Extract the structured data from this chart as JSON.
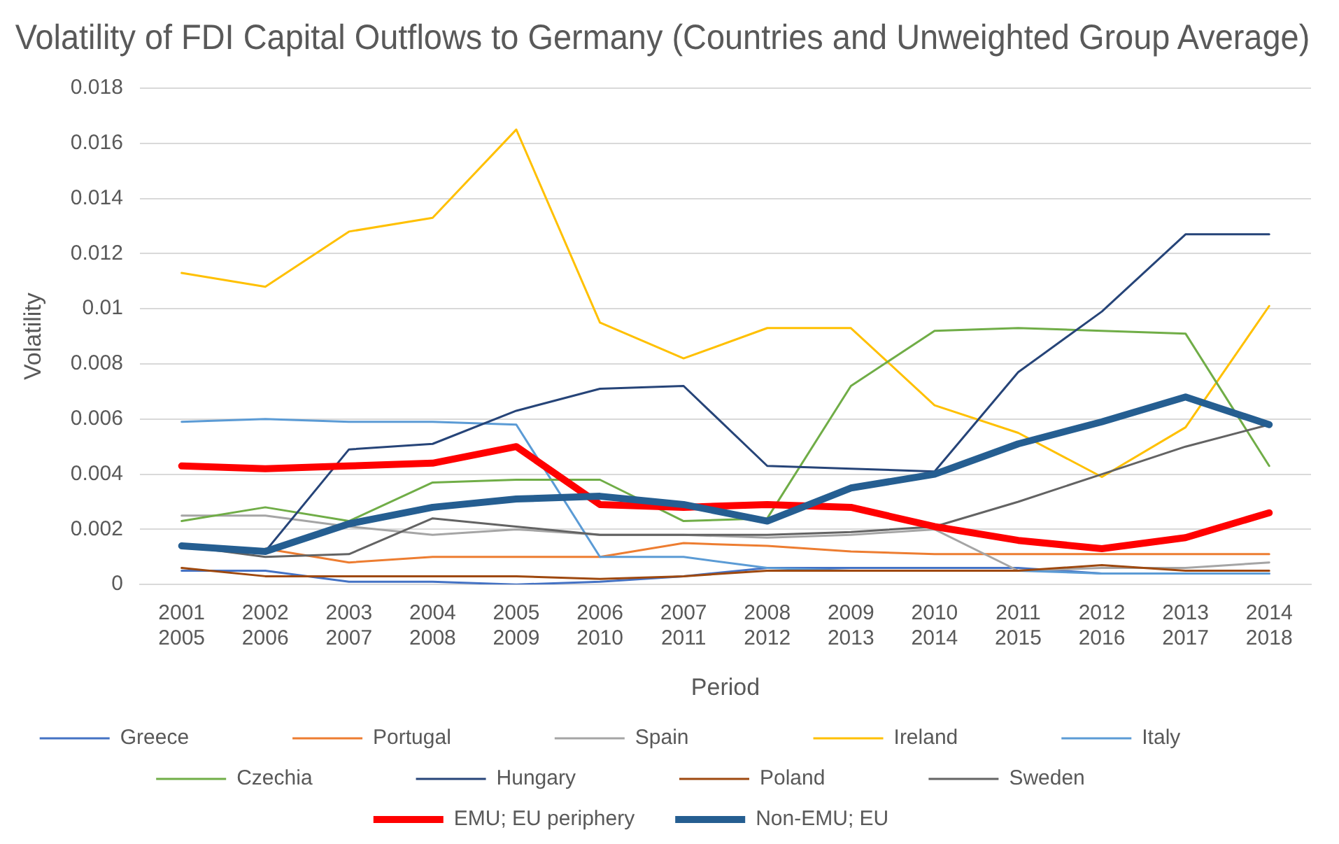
{
  "chart_data": {
    "type": "line",
    "title": "Volatility of FDI Capital Outflows to Germany (Countries and Unweighted Group Average)",
    "xlabel": "Period",
    "ylabel": "Volatility",
    "categories": [
      "2001\n2005",
      "2002\n2006",
      "2003\n2007",
      "2004\n2008",
      "2005\n2009",
      "2006\n2010",
      "2007\n2011",
      "2008\n2012",
      "2009\n2013",
      "2010\n2014",
      "2011\n2015",
      "2012\n2016",
      "2013\n2017",
      "2014\n2018"
    ],
    "ylim": [
      0,
      0.018
    ],
    "yticks": [
      0,
      0.002,
      0.004,
      0.006,
      0.008,
      0.01,
      0.012,
      0.014,
      0.016,
      0.018
    ],
    "grid": "y",
    "legend": "bottom",
    "marker": "none",
    "line_style": "solid",
    "series": [
      {
        "name": "Greece",
        "color": "#4472c4",
        "values": [
          0.0005,
          0.0005,
          0.0001,
          0.0001,
          0.0,
          0.0001,
          0.0003,
          0.0006,
          0.0006,
          0.0006,
          0.0006,
          0.0004,
          0.0004,
          0.0004
        ]
      },
      {
        "name": "Portugal",
        "color": "#ed7d31",
        "values": [
          null,
          0.0013,
          0.0008,
          0.001,
          0.001,
          0.001,
          0.0015,
          0.0014,
          0.0012,
          0.0011,
          0.0011,
          0.0011,
          0.0011,
          0.0011
        ]
      },
      {
        "name": "Spain",
        "color": "#a5a5a5",
        "values": [
          0.0025,
          0.0025,
          0.0021,
          0.0018,
          0.002,
          0.0018,
          0.0018,
          0.0017,
          0.0018,
          0.002,
          0.0005,
          0.0006,
          0.0006,
          0.0008
        ]
      },
      {
        "name": "Ireland",
        "color": "#ffc000",
        "values": [
          0.0113,
          0.0108,
          0.0128,
          0.0133,
          0.0165,
          0.0095,
          0.0082,
          0.0093,
          0.0093,
          0.0065,
          0.0055,
          0.0039,
          0.0057,
          0.0101
        ]
      },
      {
        "name": "Italy",
        "color": "#5b9bd5",
        "values": [
          0.0059,
          0.006,
          0.0059,
          0.0059,
          0.0058,
          0.001,
          0.001,
          0.0006,
          0.0005,
          0.0005,
          0.0005,
          0.0004,
          0.0004,
          0.0004
        ]
      },
      {
        "name": "Czechia",
        "color": "#70ad47",
        "values": [
          0.0023,
          0.0028,
          0.0023,
          0.0037,
          0.0038,
          0.0038,
          0.0023,
          0.0024,
          0.0072,
          0.0092,
          0.0093,
          0.0092,
          0.0091,
          0.0043
        ]
      },
      {
        "name": "Hungary",
        "color": "#264478",
        "values": [
          0.0014,
          0.0012,
          0.0049,
          0.0051,
          0.0063,
          0.0071,
          0.0072,
          0.0043,
          0.0042,
          0.0041,
          0.0077,
          0.0099,
          0.0127,
          0.0127
        ]
      },
      {
        "name": "Poland",
        "color": "#9e480e",
        "values": [
          0.0006,
          0.0003,
          0.0003,
          0.0003,
          0.0003,
          0.0002,
          0.0003,
          0.0005,
          0.0005,
          0.0005,
          0.0005,
          0.0007,
          0.0005,
          0.0005
        ]
      },
      {
        "name": "Sweden",
        "color": "#636363",
        "values": [
          0.0014,
          0.001,
          0.0011,
          0.0024,
          0.0021,
          0.0018,
          0.0018,
          0.0018,
          0.0019,
          0.0021,
          0.003,
          0.004,
          0.005,
          0.0058
        ]
      },
      {
        "name": "EMU; EU periphery",
        "color": "#ff0000",
        "values": [
          0.0043,
          0.0042,
          0.0043,
          0.0044,
          0.005,
          0.0029,
          0.0028,
          0.0029,
          0.0028,
          0.0021,
          0.0016,
          0.0013,
          0.0017,
          0.0026
        ]
      },
      {
        "name": "Non-EMU; EU",
        "color": "#255e91",
        "values": [
          0.0014,
          0.0012,
          0.0022,
          0.0028,
          0.0031,
          0.0032,
          0.0029,
          0.0023,
          0.0035,
          0.004,
          0.0051,
          0.0059,
          0.0068,
          0.0058
        ]
      }
    ]
  }
}
